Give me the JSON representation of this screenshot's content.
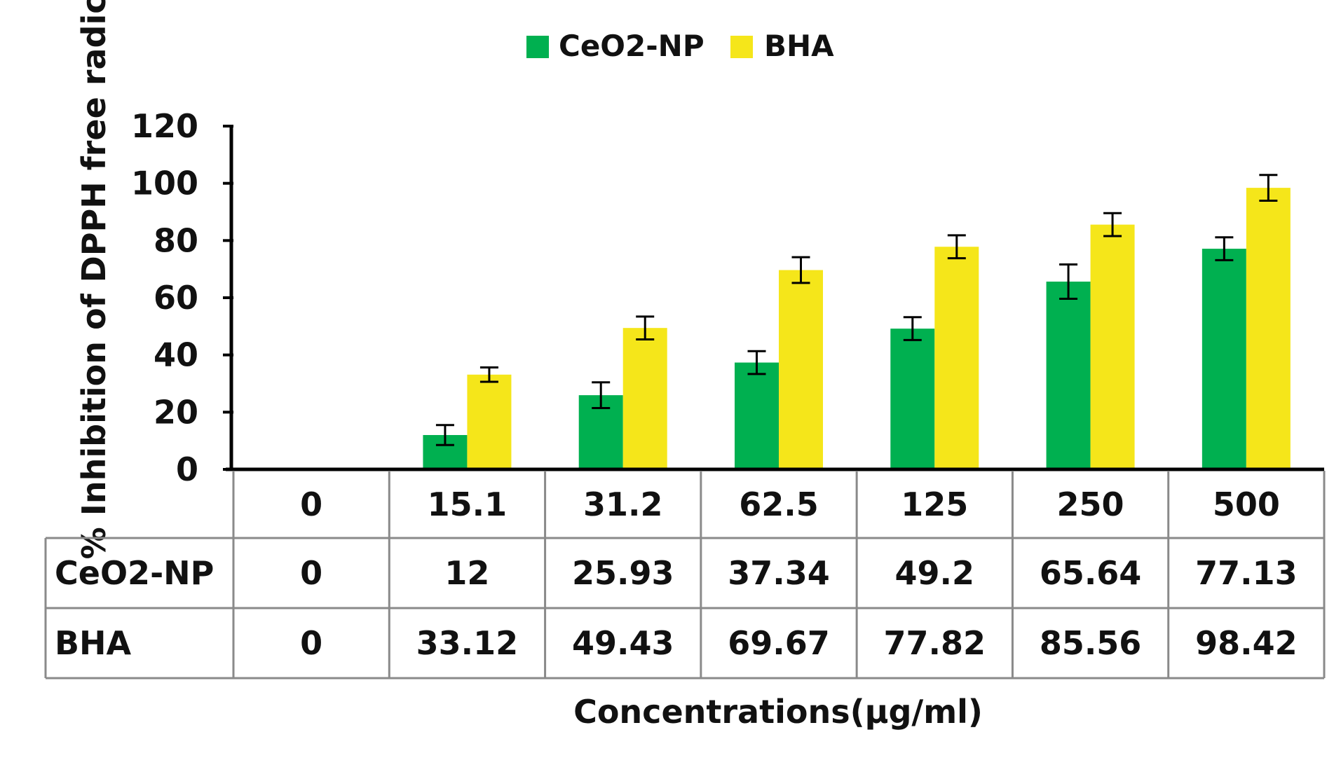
{
  "chart_data": {
    "type": "bar",
    "categories": [
      "0",
      "15.1",
      "31.2",
      "62.5",
      "125",
      "250",
      "500"
    ],
    "series": [
      {
        "name": "CeO2-NP",
        "values": [
          0,
          12,
          25.93,
          37.34,
          49.2,
          65.64,
          77.13
        ],
        "errors": [
          0,
          3.5,
          4.5,
          4,
          4,
          6,
          4
        ],
        "color": "#00b050"
      },
      {
        "name": "BHA",
        "values": [
          0,
          33.12,
          49.43,
          69.67,
          77.82,
          85.56,
          98.42
        ],
        "errors": [
          0,
          2.5,
          4,
          4.5,
          4,
          4,
          4.5
        ],
        "color": "#f5e61a"
      }
    ],
    "ylabel": "% Inhibition of DPPH free radical",
    "xlabel": "Concentrations(μg/ml)",
    "ylim": [
      0,
      120
    ],
    "yticks": [
      "0",
      "20",
      "40",
      "60",
      "80",
      "100",
      "120"
    ],
    "table": {
      "rows": [
        {
          "label": "CeO2-NP",
          "cells": [
            "0",
            "12",
            "25.93",
            "37.34",
            "49.2",
            "65.64",
            "77.13"
          ]
        },
        {
          "label": "BHA",
          "cells": [
            "0",
            "33.12",
            "49.43",
            "69.67",
            "77.82",
            "85.56",
            "98.42"
          ]
        }
      ]
    },
    "legend": {
      "position": "top-center",
      "entries": [
        "CeO2-NP",
        "BHA"
      ]
    },
    "grid": false
  }
}
